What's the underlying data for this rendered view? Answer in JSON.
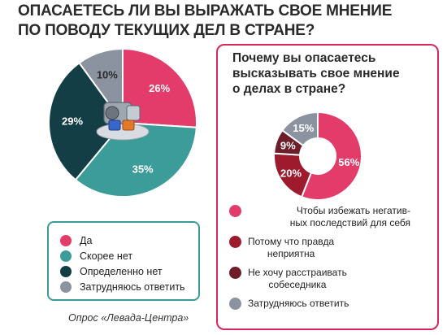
{
  "title_lines": [
    "ОПАСАЕТЕСЬ ЛИ ВЫ ВЫРАЖАТЬ СВОЕ МНЕНИЕ",
    "ПО ПОВОДУ ТЕКУЩИХ ДЕЛ В СТРАНЕ?"
  ],
  "source": "Опрос «Левада-Центра»",
  "chart_data": [
    {
      "type": "pie",
      "title": "ОПАСАЕТЕСЬ ЛИ ВЫ ВЫРАЖАТЬ СВОЕ МНЕНИЕ ПО ПОВОДУ ТЕКУЩИХ ДЕЛ В СТРАНЕ?",
      "categories": [
        "Да",
        "Скорее нет",
        "Определенно нет",
        "Затрудняюсь ответить"
      ],
      "values": [
        26,
        35,
        29,
        10
      ],
      "labels": [
        "26%",
        "35%",
        "29%",
        "10%"
      ],
      "colors": [
        "#e33c6a",
        "#3c9c99",
        "#143e45",
        "#8c93a0"
      ],
      "legend_placement": "bottom-left"
    },
    {
      "type": "pie",
      "title_lines": [
        "Почему вы опасаетесь",
        "высказывать свое мнение",
        "о делах в стране?"
      ],
      "categories": [
        "Чтобы избежать негативных последствий для себя",
        "Потому что правда неприятна",
        "Не хочу расстраивать собеседника",
        "Затрудняюсь ответить"
      ],
      "legend_lines": [
        [
          "Чтобы избежать негатив-",
          "ных последствий для себя"
        ],
        [
          "Потому что правда",
          "неприятна"
        ],
        [
          "Не хочу расстраивать",
          "собеседника"
        ],
        [
          "Затрудняюсь ответить"
        ]
      ],
      "values": [
        56,
        20,
        9,
        15
      ],
      "labels": [
        "56%",
        "20%",
        "9%",
        "15%"
      ],
      "colors": [
        "#e33c6a",
        "#9e1b2e",
        "#6d1e28",
        "#8c93a0"
      ],
      "legend_placement": "bottom"
    }
  ]
}
